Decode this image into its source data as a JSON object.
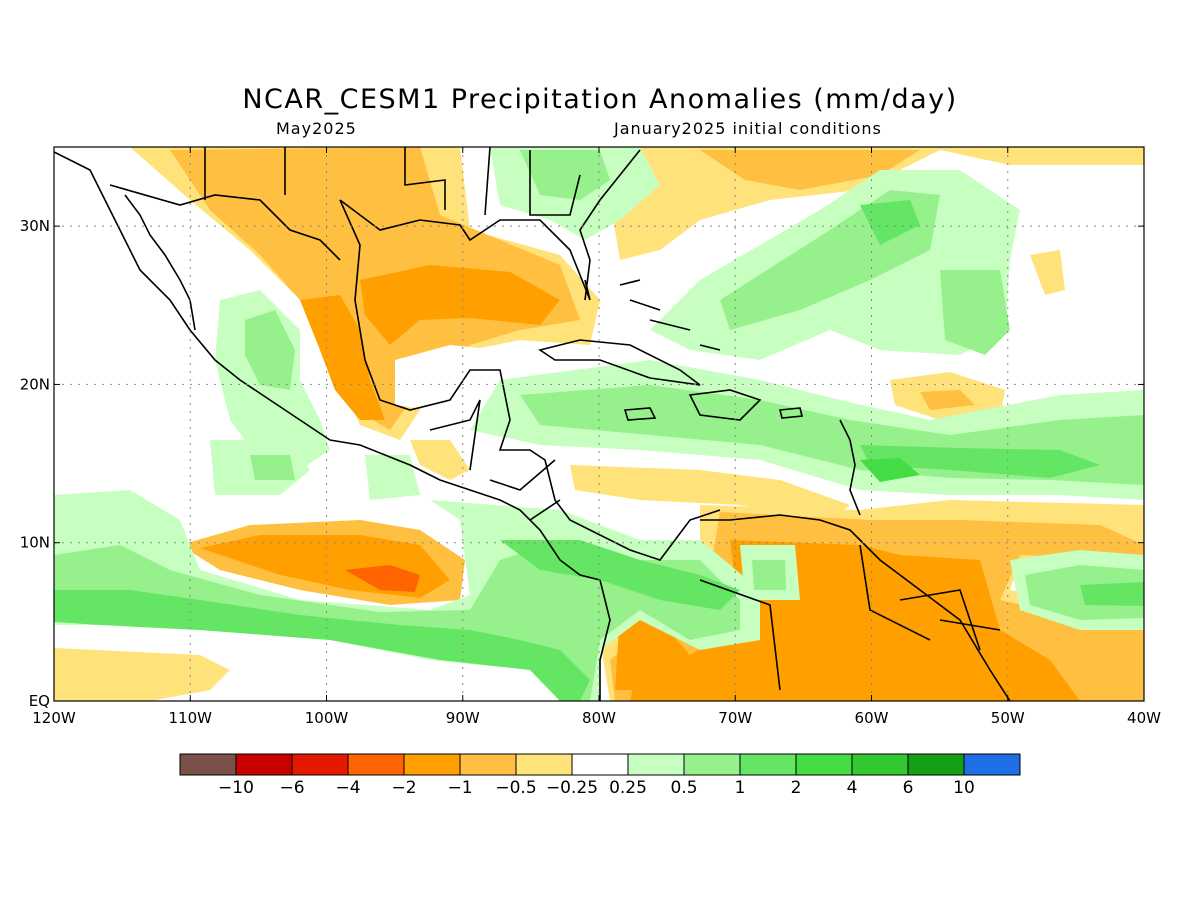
{
  "title": "NCAR_CESM1 Precipitation Anomalies (mm/day)",
  "subtitle_left": "May2025",
  "subtitle_right": "January2025 initial conditions",
  "map": {
    "lon_range": [
      -120,
      -40
    ],
    "lat_range": [
      0,
      35
    ],
    "x_ticks": [
      "120W",
      "110W",
      "100W",
      "90W",
      "80W",
      "70W",
      "60W",
      "50W",
      "40W"
    ],
    "y_ticks": [
      "EQ",
      "10N",
      "20N",
      "30N"
    ],
    "gridlines": "dotted",
    "coastlines": true,
    "features": [
      {
        "name": "Eastern Pacific ITCZ",
        "anomaly": "wet",
        "class": "2 to 4"
      },
      {
        "name": "Pacific off Central America",
        "anomaly": "dry",
        "class": "-2 to -4"
      },
      {
        "name": "Gulf of Mexico / southern Mexico",
        "anomaly": "dry",
        "class": "-1 to -2"
      },
      {
        "name": "Caribbean / tropical Atlantic",
        "anomaly": "wet",
        "class": "1 to 4"
      },
      {
        "name": "Northern South America",
        "anomaly": "dry",
        "class": "-1 to -2"
      },
      {
        "name": "Southeastern United States",
        "anomaly": "wet",
        "class": "0.25 to 1"
      }
    ]
  },
  "colorbar": {
    "labels": [
      "−10",
      "−6",
      "−4",
      "−2",
      "−1",
      "−0.5",
      "−0.25",
      "0.25",
      "0.5",
      "1",
      "2",
      "4",
      "6",
      "10"
    ],
    "colors": [
      "#7a5048",
      "#c80000",
      "#e41a00",
      "#ff6400",
      "#ffa000",
      "#ffbf40",
      "#ffe27a",
      "#ffffff",
      "#c6ffc0",
      "#96f08c",
      "#64e664",
      "#46dc46",
      "#32c832",
      "#14a014",
      "#1e6ee6"
    ]
  }
}
